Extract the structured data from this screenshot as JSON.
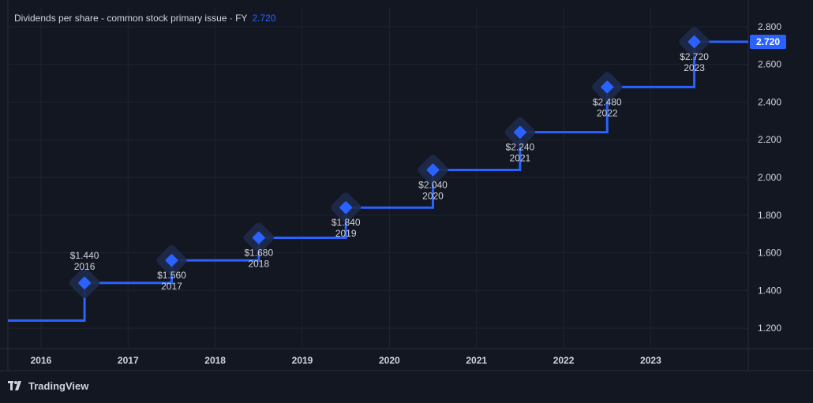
{
  "legend": {
    "title": "Dividends per share - common stock primary issue · FY",
    "value": "2.720"
  },
  "brand": {
    "name": "TradingView",
    "icon": "tradingview-logo-icon"
  },
  "colors": {
    "background": "#131722",
    "grid": "#1f2330",
    "line": "#2962ff",
    "marker": "#2962ff",
    "marker_halo": "#1e2a4a",
    "text": "#d1d4dc",
    "axis_text": "#d1d4dc",
    "price_label_bg": "#2962ff",
    "price_label_text": "#ffffff"
  },
  "chart_data": {
    "type": "line",
    "step": true,
    "title": "Dividends per share - common stock primary issue · FY",
    "xlabel": "",
    "ylabel": "",
    "grid": true,
    "ylim": [
      1.1,
      2.9
    ],
    "xlim": [
      2015.62,
      2024.12
    ],
    "x_ticks": [
      2016,
      2017,
      2018,
      2019,
      2020,
      2021,
      2022,
      2023
    ],
    "y_ticks": [
      1.2,
      1.4,
      1.6,
      1.8,
      2.0,
      2.2,
      2.4,
      2.6,
      2.8
    ],
    "y_tick_labels": [
      "1.200",
      "1.400",
      "1.600",
      "1.800",
      "2.000",
      "2.200",
      "2.400",
      "2.600",
      "2.800"
    ],
    "start_value": 1.24,
    "series": [
      {
        "name": "Dividends per share",
        "points": [
          {
            "year": "2016",
            "value": 1.44,
            "label": "$1.440"
          },
          {
            "year": "2017",
            "value": 1.56,
            "label": "$1.560"
          },
          {
            "year": "2018",
            "value": 1.68,
            "label": "$1.680"
          },
          {
            "year": "2019",
            "value": 1.84,
            "label": "$1.840"
          },
          {
            "year": "2020",
            "value": 2.04,
            "label": "$2.040"
          },
          {
            "year": "2021",
            "value": 2.24,
            "label": "$2.240"
          },
          {
            "year": "2022",
            "value": 2.48,
            "label": "$2.480"
          },
          {
            "year": "2023",
            "value": 2.72,
            "label": "$2.720"
          }
        ]
      }
    ],
    "last_price_label": "2.720"
  }
}
